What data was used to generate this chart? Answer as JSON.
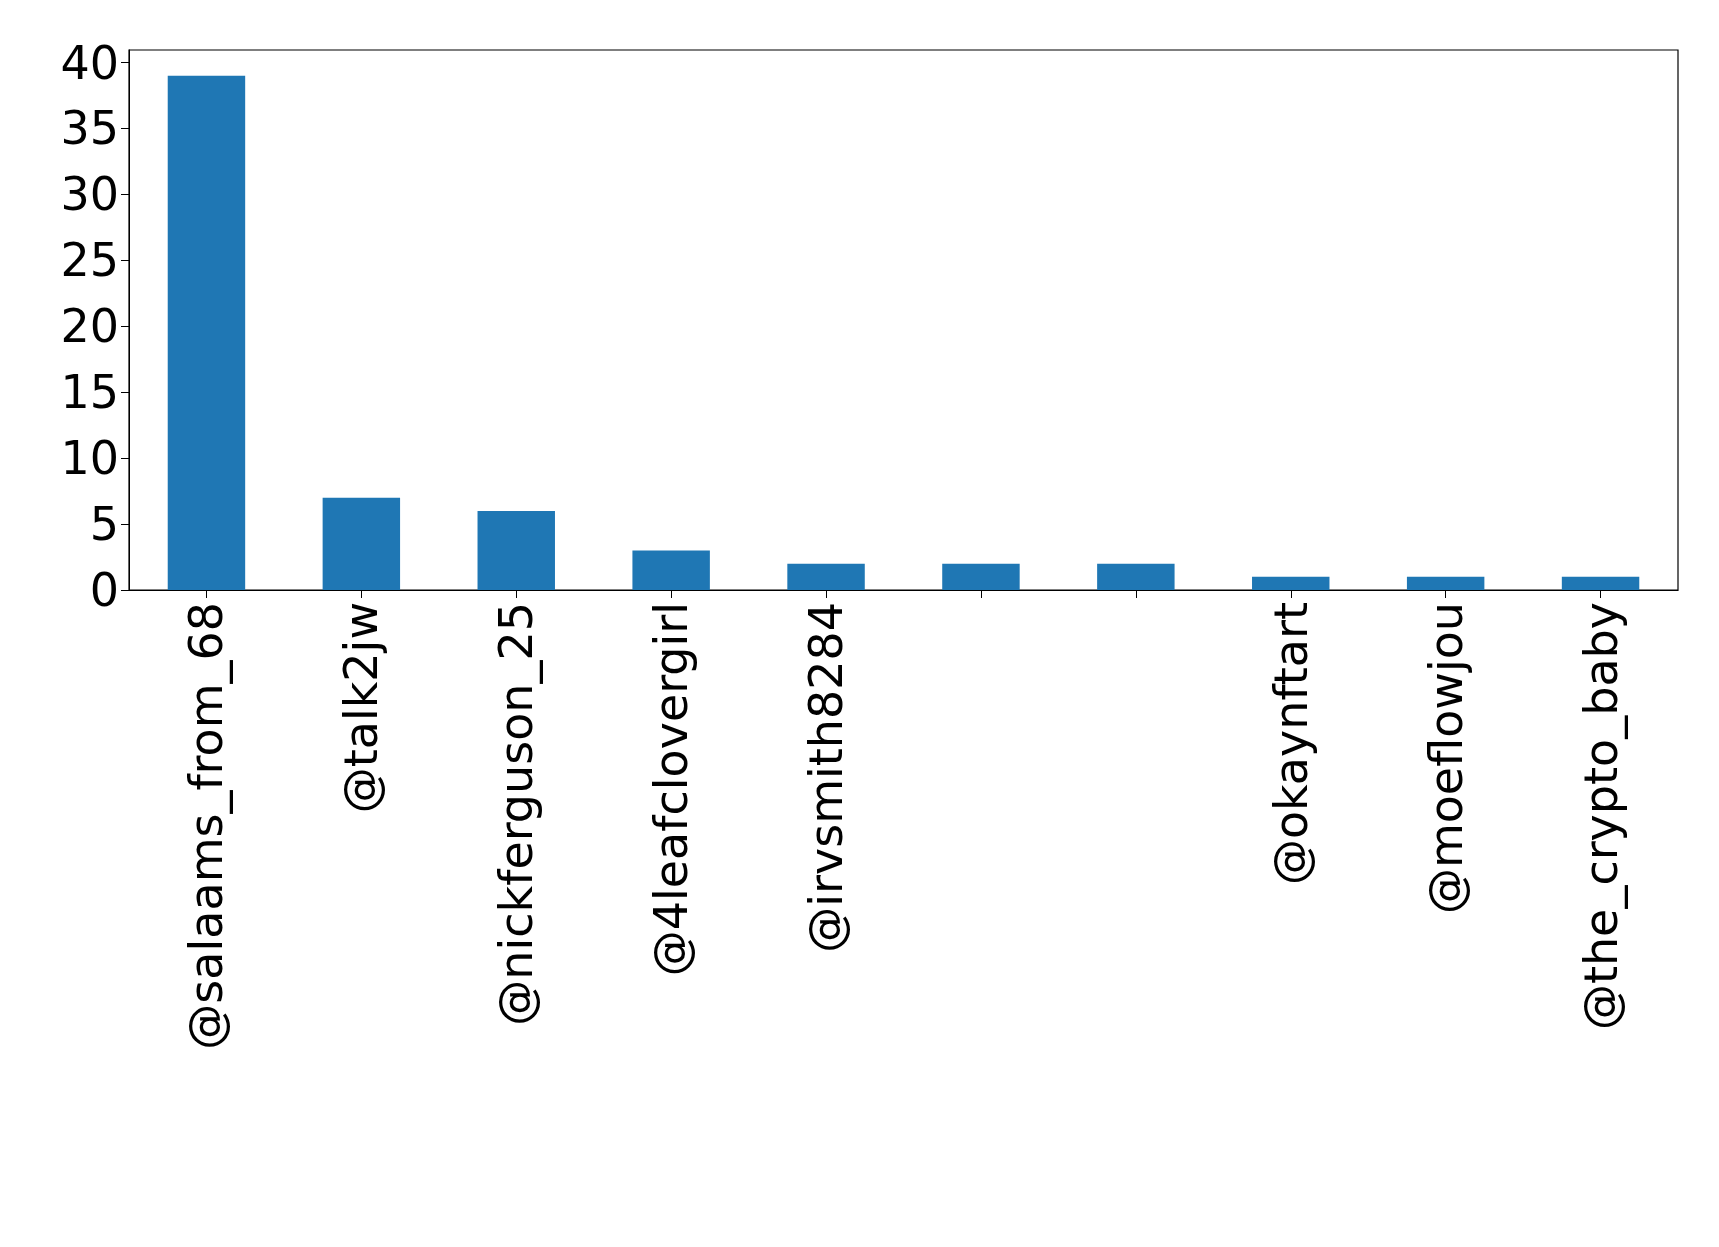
{
  "chart_data": {
    "type": "bar",
    "categories": [
      "@salaams_from_68",
      "@talk2jw",
      "@nickferguson_25",
      "@4leafclovergirl",
      "@irvsmith8284",
      null,
      null,
      "@okaynftart",
      "@moeflowjou",
      "@the_crypto_baby"
    ],
    "values": [
      39,
      7,
      6,
      3,
      2,
      2,
      2,
      1,
      1,
      1
    ],
    "color": "#1f77b4",
    "ylim": [
      0,
      40.95
    ],
    "yticks": [
      0,
      5,
      10,
      15,
      20,
      25,
      30,
      35,
      40
    ],
    "grid": false
  }
}
